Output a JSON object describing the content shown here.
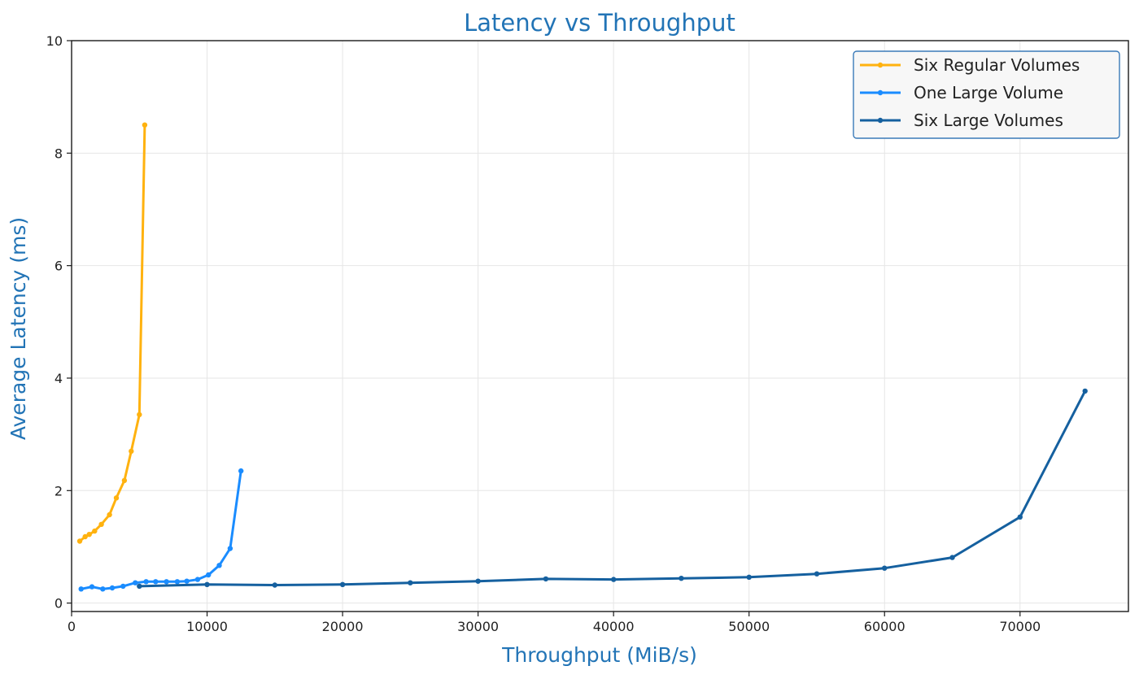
{
  "chart_data": {
    "type": "line",
    "title": "Latency vs Throughput",
    "xlabel": "Throughput (MiB/s)",
    "ylabel": "Average Latency (ms)",
    "xlim": [
      0,
      78000
    ],
    "ylim": [
      -0.15,
      10
    ],
    "xticks": [
      0,
      10000,
      20000,
      30000,
      40000,
      50000,
      60000,
      70000
    ],
    "yticks": [
      0,
      2,
      4,
      6,
      8,
      10
    ],
    "grid": true,
    "legend_position": "top-right",
    "series": [
      {
        "name": "Six Regular Volumes",
        "color": "#ffb20f",
        "x": [
          600,
          1000,
          1300,
          1700,
          2200,
          2800,
          3300,
          3900,
          4400,
          5000,
          5400
        ],
        "y": [
          1.1,
          1.18,
          1.22,
          1.28,
          1.4,
          1.57,
          1.87,
          2.18,
          2.7,
          3.35,
          8.5
        ]
      },
      {
        "name": "One Large Volume",
        "color": "#1a8cff",
        "x": [
          700,
          1500,
          2300,
          3000,
          3800,
          4700,
          5500,
          6200,
          7000,
          7800,
          8500,
          9300,
          10100,
          10900,
          11700,
          12500
        ],
        "y": [
          0.25,
          0.29,
          0.25,
          0.27,
          0.3,
          0.36,
          0.38,
          0.38,
          0.38,
          0.38,
          0.39,
          0.42,
          0.5,
          0.67,
          0.97,
          2.35
        ]
      },
      {
        "name": "Six Large Volumes",
        "color": "#15609f",
        "x": [
          5000,
          10000,
          15000,
          20000,
          25000,
          30000,
          35000,
          40000,
          45000,
          50000,
          55000,
          60000,
          65000,
          70000,
          74800
        ],
        "y": [
          0.3,
          0.33,
          0.32,
          0.33,
          0.36,
          0.39,
          0.43,
          0.42,
          0.44,
          0.46,
          0.52,
          0.62,
          0.81,
          1.53,
          3.77
        ]
      }
    ]
  }
}
